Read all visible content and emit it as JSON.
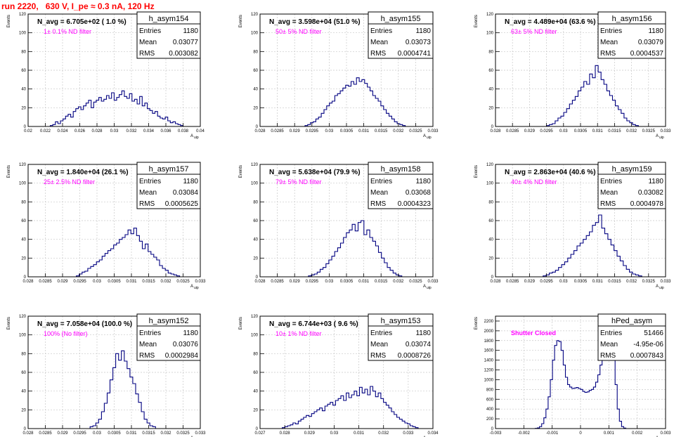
{
  "page_title": "run 2220,   630 V, I_pe ≈ 0.3 nA, 120 Hz",
  "colors": {
    "title": "#ff0000",
    "hist": "#000080",
    "annotation": "#ff00ff",
    "grid": "#c8c8c8"
  },
  "chart_data": [
    {
      "type": "histogram",
      "name": "h_asym154",
      "stats": {
        "entries_label": "Entries",
        "entries": "1180",
        "mean_label": "Mean",
        "mean": "0.03077",
        "rms_label": "RMS",
        "rms": "0.003082"
      },
      "title": "N_avg = 6.705e+02 ( 1.0 %)",
      "annotation": "1± 0.1% ND filter",
      "xlabel": "A_uip",
      "ylabel": "Events",
      "xlim": [
        0.02,
        0.041
      ],
      "ylim": [
        0,
        120
      ],
      "grid": true,
      "xticks": [
        "0.02",
        "0.022",
        "0.024",
        "0.026",
        "0.028",
        "0.03",
        "0.032",
        "0.034",
        "0.036",
        "0.038",
        "0.04"
      ],
      "yticks": [
        "0",
        "20",
        "40",
        "60",
        "80",
        "100",
        "120"
      ],
      "bins": {
        "lo": 0.0227,
        "hi": 0.0389,
        "counts": [
          1,
          2,
          5,
          3,
          6,
          8,
          11,
          13,
          10,
          16,
          19,
          21,
          18,
          22,
          25,
          28,
          20,
          26,
          28,
          31,
          27,
          29,
          33,
          30,
          36,
          28,
          31,
          34,
          38,
          32,
          30,
          35,
          27,
          29,
          24,
          32,
          22,
          25,
          19,
          17,
          14,
          16,
          11,
          9,
          8,
          10,
          6,
          4,
          5,
          3,
          2,
          1
        ]
      }
    },
    {
      "type": "histogram",
      "name": "h_asym155",
      "stats": {
        "entries_label": "Entries",
        "entries": "1180",
        "mean_label": "Mean",
        "mean": "0.03073",
        "rms_label": "RMS",
        "rms": "0.0004741"
      },
      "title": "N_avg = 3.598e+04 (51.0 %)",
      "annotation": "50± 5% ND filter",
      "xlabel": "A_uip",
      "ylabel": "Events",
      "xlim": [
        0.028,
        0.033
      ],
      "ylim": [
        0,
        120
      ],
      "grid": true,
      "xticks": [
        "0.028",
        "0.0285",
        "0.029",
        "0.0295",
        "0.03",
        "0.0305",
        "0.031",
        "0.0315",
        "0.032",
        "0.0325",
        "0.033"
      ],
      "yticks": [
        "0",
        "20",
        "40",
        "60",
        "80",
        "100",
        "120"
      ],
      "bins": {
        "lo": 0.0293,
        "hi": 0.0322,
        "counts": [
          1,
          2,
          4,
          5,
          8,
          10,
          14,
          18,
          22,
          25,
          27,
          33,
          35,
          38,
          41,
          44,
          43,
          48,
          45,
          52,
          48,
          50,
          46,
          42,
          38,
          33,
          30,
          27,
          22,
          18,
          14,
          11,
          8,
          5,
          3,
          2,
          1
        ]
      }
    },
    {
      "type": "histogram",
      "name": "h_asym156",
      "stats": {
        "entries_label": "Entries",
        "entries": "1180",
        "mean_label": "Mean",
        "mean": "0.03079",
        "rms_label": "RMS",
        "rms": "0.0004537"
      },
      "title": "N_avg = 4.489e+04 (63.6 %)",
      "annotation": "63± 5% ND filter",
      "xlabel": "A_uip",
      "ylabel": "Events",
      "xlim": [
        0.028,
        0.033
      ],
      "ylim": [
        0,
        120
      ],
      "grid": true,
      "xticks": [
        "0.028",
        "0.0285",
        "0.029",
        "0.0295",
        "0.03",
        "0.0305",
        "0.031",
        "0.0315",
        "0.032",
        "0.0325",
        "0.033"
      ],
      "yticks": [
        "0",
        "20",
        "40",
        "60",
        "80",
        "100",
        "120"
      ],
      "bins": {
        "lo": 0.0295,
        "hi": 0.0322,
        "counts": [
          1,
          2,
          3,
          6,
          9,
          11,
          15,
          19,
          24,
          28,
          32,
          38,
          42,
          48,
          45,
          56,
          52,
          65,
          58,
          50,
          45,
          38,
          33,
          28,
          22,
          18,
          14,
          9,
          6,
          4,
          2,
          1
        ]
      }
    },
    {
      "type": "histogram",
      "name": "h_asym157",
      "stats": {
        "entries_label": "Entries",
        "entries": "1180",
        "mean_label": "Mean",
        "mean": "0.03084",
        "rms_label": "RMS",
        "rms": "0.0005625"
      },
      "title": "N_avg = 1.840e+04 (26.1 %)",
      "annotation": "25± 2.5% ND filter",
      "xlabel": "A_uip",
      "ylabel": "Events",
      "xlim": [
        0.028,
        0.033
      ],
      "ylim": [
        0,
        120
      ],
      "grid": true,
      "xticks": [
        "0.028",
        "0.0285",
        "0.029",
        "0.0295",
        "0.03",
        "0.0305",
        "0.031",
        "0.0315",
        "0.032",
        "0.0325",
        "0.033"
      ],
      "yticks": [
        "0",
        "20",
        "40",
        "60",
        "80",
        "100",
        "120"
      ],
      "bins": {
        "lo": 0.0294,
        "hi": 0.0324,
        "counts": [
          1,
          3,
          5,
          6,
          9,
          11,
          13,
          16,
          18,
          22,
          25,
          28,
          30,
          34,
          36,
          40,
          42,
          45,
          50,
          46,
          52,
          44,
          38,
          30,
          35,
          27,
          24,
          21,
          18,
          12,
          9,
          7,
          4,
          3,
          2,
          1
        ]
      }
    },
    {
      "type": "histogram",
      "name": "h_asym158",
      "stats": {
        "entries_label": "Entries",
        "entries": "1180",
        "mean_label": "Mean",
        "mean": "0.03068",
        "rms_label": "RMS",
        "rms": "0.0004323"
      },
      "title": "N_avg = 5.638e+04 (79.9 %)",
      "annotation": "79± 5% ND filter",
      "xlabel": "A_uip",
      "ylabel": "Events",
      "xlim": [
        0.028,
        0.033
      ],
      "ylim": [
        0,
        120
      ],
      "grid": true,
      "xticks": [
        "0.028",
        "0.0285",
        "0.029",
        "0.0295",
        "0.03",
        "0.0305",
        "0.031",
        "0.0315",
        "0.032",
        "0.0325",
        "0.033"
      ],
      "yticks": [
        "0",
        "20",
        "40",
        "60",
        "80",
        "100",
        "120"
      ],
      "bins": {
        "lo": 0.0294,
        "hi": 0.0321,
        "counts": [
          1,
          2,
          3,
          5,
          8,
          10,
          14,
          18,
          22,
          27,
          31,
          36,
          42,
          47,
          50,
          56,
          49,
          58,
          60,
          45,
          50,
          42,
          38,
          33,
          26,
          20,
          15,
          10,
          7,
          4,
          2,
          1
        ]
      }
    },
    {
      "type": "histogram",
      "name": "h_asym159",
      "stats": {
        "entries_label": "Entries",
        "entries": "1180",
        "mean_label": "Mean",
        "mean": "0.03082",
        "rms_label": "RMS",
        "rms": "0.0004978"
      },
      "title": "N_avg = 2.863e+04 (40.6 %)",
      "annotation": "40± 4% ND filter",
      "xlabel": "A_uip",
      "ylabel": "Events",
      "xlim": [
        0.028,
        0.033
      ],
      "ylim": [
        0,
        120
      ],
      "grid": true,
      "xticks": [
        "0.028",
        "0.0285",
        "0.029",
        "0.0295",
        "0.03",
        "0.0305",
        "0.031",
        "0.0315",
        "0.032",
        "0.0325",
        "0.033"
      ],
      "yticks": [
        "0",
        "20",
        "40",
        "60",
        "80",
        "100",
        "120"
      ],
      "bins": {
        "lo": 0.0294,
        "hi": 0.0323,
        "counts": [
          1,
          2,
          4,
          5,
          7,
          10,
          13,
          16,
          20,
          24,
          28,
          33,
          36,
          40,
          44,
          48,
          55,
          58,
          66,
          52,
          46,
          40,
          34,
          28,
          22,
          17,
          12,
          8,
          5,
          3,
          2,
          1
        ]
      }
    },
    {
      "type": "histogram",
      "name": "h_asym152",
      "stats": {
        "entries_label": "Entries",
        "entries": "1180",
        "mean_label": "Mean",
        "mean": "0.03076",
        "rms_label": "RMS",
        "rms": "0.0002984"
      },
      "title": "N_avg = 7.058e+04 (100.0 %)",
      "annotation": "100% (No filter)",
      "xlabel": "A_uip",
      "ylabel": "Events",
      "xlim": [
        0.028,
        0.033
      ],
      "ylim": [
        0,
        120
      ],
      "grid": true,
      "xticks": [
        "0.028",
        "0.0285",
        "0.029",
        "0.0295",
        "0.03",
        "0.0305",
        "0.031",
        "0.0315",
        "0.032",
        "0.0325",
        "0.033"
      ],
      "yticks": [
        "0",
        "20",
        "40",
        "60",
        "80",
        "100",
        "120"
      ],
      "bins": {
        "lo": 0.0298,
        "hi": 0.0317,
        "counts": [
          2,
          3,
          6,
          10,
          18,
          27,
          38,
          52,
          65,
          80,
          73,
          83,
          72,
          64,
          55,
          48,
          37,
          28,
          18,
          10,
          6,
          3,
          2
        ]
      }
    },
    {
      "type": "histogram",
      "name": "h_asym153",
      "stats": {
        "entries_label": "Entries",
        "entries": "1180",
        "mean_label": "Mean",
        "mean": "0.03074",
        "rms_label": "RMS",
        "rms": "0.0008726"
      },
      "title": "N_avg = 6.744e+03 ( 9.6 %)",
      "annotation": "10± 1% ND filter",
      "xlabel": "A_uip",
      "ylabel": "Events",
      "xlim": [
        0.027,
        0.034
      ],
      "ylim": [
        0,
        120
      ],
      "grid": true,
      "xticks": [
        "0.027",
        "0.028",
        "0.029",
        "0.03",
        "0.031",
        "0.032",
        "0.033",
        "0.034"
      ],
      "yticks": [
        "0",
        "20",
        "40",
        "60",
        "80",
        "100",
        "120"
      ],
      "bins": {
        "lo": 0.0279,
        "hi": 0.0334,
        "counts": [
          1,
          2,
          3,
          4,
          6,
          5,
          8,
          10,
          12,
          14,
          13,
          16,
          18,
          20,
          22,
          19,
          24,
          26,
          28,
          25,
          30,
          32,
          35,
          30,
          38,
          33,
          36,
          40,
          35,
          44,
          38,
          42,
          36,
          45,
          40,
          34,
          38,
          32,
          28,
          25,
          22,
          18,
          15,
          12,
          10,
          8,
          6,
          5,
          3,
          2,
          1
        ]
      }
    },
    {
      "type": "histogram",
      "name": "hPed_asym",
      "stats": {
        "entries_label": "Entries",
        "entries": "51466",
        "mean_label": "Mean",
        "mean": "-4.95e-06",
        "rms_label": "RMS",
        "rms": "0.0007843"
      },
      "title": "",
      "annotation": "Shutter Closed",
      "xlabel": "A_uip",
      "ylabel": "Events",
      "xlim": [
        -0.003,
        0.003
      ],
      "ylim": [
        0,
        2300
      ],
      "grid": true,
      "xticks": [
        "-0.003",
        "-0.002",
        "-0.001",
        "0",
        "0.001",
        "0.002",
        "0.003"
      ],
      "yticks": [
        "0",
        "200",
        "400",
        "600",
        "800",
        "1000",
        "1200",
        "1400",
        "1600",
        "1800",
        "2000",
        "2200"
      ],
      "bins": {
        "lo": -0.0016,
        "hi": 0.0016,
        "counts": [
          5,
          15,
          40,
          100,
          220,
          400,
          650,
          1000,
          1400,
          1700,
          1800,
          1780,
          1600,
          1300,
          1050,
          900,
          850,
          820,
          830,
          840,
          820,
          800,
          760,
          740,
          750,
          780,
          800,
          850,
          950,
          1100,
          1300,
          1600,
          1900,
          2150,
          2200,
          2000,
          1500,
          900,
          400,
          150,
          40,
          10
        ]
      }
    }
  ]
}
